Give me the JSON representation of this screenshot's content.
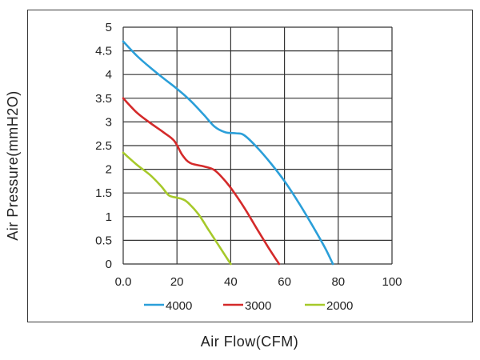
{
  "chart_data": {
    "type": "line",
    "xlabel": "Air Flow(CFM)",
    "ylabel": "Air Pressure(mmH2O)",
    "xlim": [
      0,
      100
    ],
    "ylim": [
      0,
      5
    ],
    "x_ticks": [
      "0.0",
      "20",
      "40",
      "60",
      "80",
      "100"
    ],
    "y_ticks": [
      "0",
      "0.5",
      "1",
      "1.5",
      "2",
      "2.5",
      "3",
      "3.5",
      "4",
      "4.5",
      "5"
    ],
    "grid": true,
    "legend_position": "bottom",
    "series": [
      {
        "name": "4000",
        "color": "#2b9fd9",
        "points": [
          [
            0,
            4.7
          ],
          [
            5,
            4.4
          ],
          [
            10,
            4.15
          ],
          [
            15,
            3.92
          ],
          [
            20,
            3.7
          ],
          [
            25,
            3.45
          ],
          [
            30,
            3.15
          ],
          [
            34,
            2.9
          ],
          [
            38,
            2.78
          ],
          [
            42,
            2.76
          ],
          [
            45,
            2.72
          ],
          [
            50,
            2.45
          ],
          [
            55,
            2.12
          ],
          [
            60,
            1.75
          ],
          [
            65,
            1.32
          ],
          [
            70,
            0.85
          ],
          [
            75,
            0.35
          ],
          [
            78,
            0.0
          ]
        ]
      },
      {
        "name": "3000",
        "color": "#d42a2a",
        "points": [
          [
            0,
            3.5
          ],
          [
            5,
            3.2
          ],
          [
            10,
            2.98
          ],
          [
            15,
            2.78
          ],
          [
            19,
            2.6
          ],
          [
            22,
            2.3
          ],
          [
            25,
            2.13
          ],
          [
            30,
            2.06
          ],
          [
            34,
            1.98
          ],
          [
            38,
            1.75
          ],
          [
            42,
            1.45
          ],
          [
            46,
            1.1
          ],
          [
            50,
            0.72
          ],
          [
            54,
            0.35
          ],
          [
            58,
            0.0
          ]
        ]
      },
      {
        "name": "2000",
        "color": "#a6c92a",
        "points": [
          [
            0,
            2.35
          ],
          [
            5,
            2.1
          ],
          [
            10,
            1.88
          ],
          [
            14,
            1.65
          ],
          [
            17,
            1.45
          ],
          [
            20,
            1.4
          ],
          [
            22,
            1.37
          ],
          [
            24,
            1.3
          ],
          [
            28,
            1.05
          ],
          [
            32,
            0.7
          ],
          [
            36,
            0.35
          ],
          [
            40,
            0.0
          ]
        ]
      }
    ]
  }
}
